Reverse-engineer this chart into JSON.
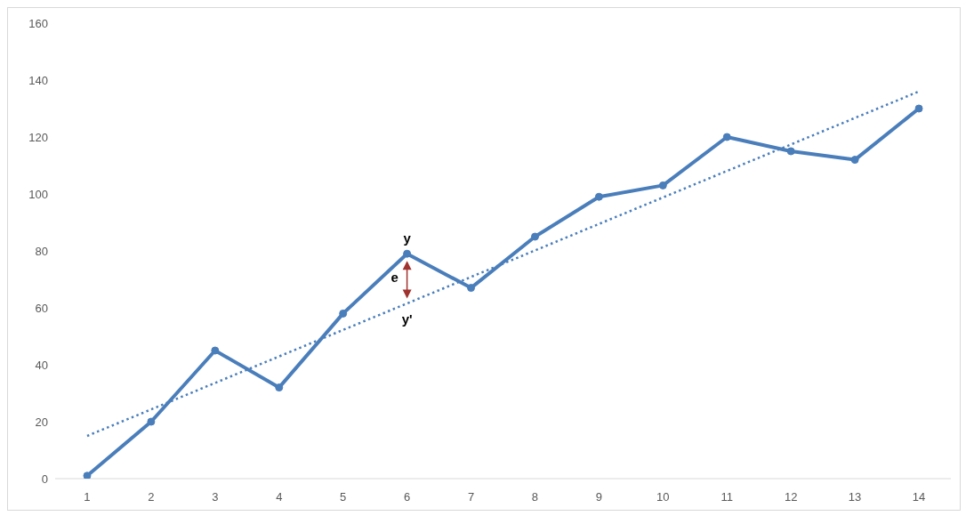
{
  "chart_data": {
    "type": "line",
    "x": [
      1,
      2,
      3,
      4,
      5,
      6,
      7,
      8,
      9,
      10,
      11,
      12,
      13,
      14
    ],
    "series": [
      {
        "color": "#4a7ebb",
        "values": [
          1,
          20,
          45,
          32,
          58,
          79,
          67,
          85,
          99,
          103,
          120,
          115,
          112,
          130
        ],
        "marker": "circle",
        "line_style": "solid"
      },
      {
        "type": "line",
        "color": "#4a7ebb",
        "x": [
          1,
          14
        ],
        "values": [
          15,
          136
        ],
        "marker": "none",
        "line_style": "dotted"
      }
    ],
    "xlim": [
      0.5,
      14.5
    ],
    "xticks": [
      1,
      2,
      3,
      4,
      5,
      6,
      7,
      8,
      9,
      10,
      11,
      12,
      13,
      14
    ],
    "ylim": [
      0,
      160
    ],
    "yticks": [
      0,
      20,
      40,
      60,
      80,
      100,
      120,
      140,
      160
    ],
    "grid": false,
    "annotations": [
      {
        "text": "y",
        "x": 6,
        "y": 79
      },
      "e",
      {
        "text": "y'",
        "x": 6,
        "y": 62
      }
    ]
  }
}
